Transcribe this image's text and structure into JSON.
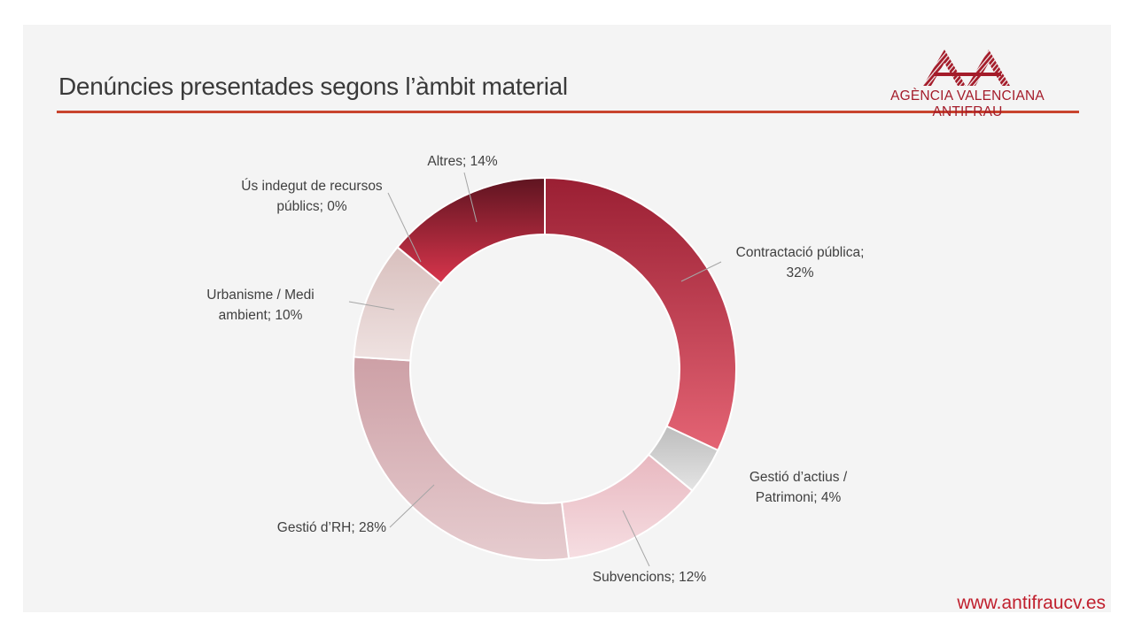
{
  "header": {
    "title": "Denúncies presentades segons l’àmbit material",
    "org_name": "AGÈNCIA VALENCIANA ANTIFRAU"
  },
  "footer": {
    "url": "www.antifraucv.es"
  },
  "colors": {
    "brand": "#a41c2a",
    "rule": "#c8442e",
    "url": "#c0202e"
  },
  "chart_data": {
    "type": "pie",
    "subtype": "doughnut",
    "title": "",
    "slices": [
      {
        "name": "Contractació pública",
        "value": 32,
        "label": [
          "Contractació pública;",
          "32%"
        ],
        "color_top": "#9a1f33",
        "color_bottom": "#e46474"
      },
      {
        "name": "Gestió d’actius / Patrimoni",
        "value": 4,
        "label": [
          "Gestió d’actius /",
          "Patrimoni; 4%"
        ],
        "color_top": "#bdbdbd",
        "color_bottom": "#e4e4e4"
      },
      {
        "name": "Subvencions",
        "value": 12,
        "label": [
          "Subvencions; 12%"
        ],
        "color_top": "#e8b8c0",
        "color_bottom": "#f6dee2"
      },
      {
        "name": "Gestió d’RH",
        "value": 28,
        "label": [
          "Gestió d’RH; 28%"
        ],
        "color_top": "#cda0a6",
        "color_bottom": "#e6cccf"
      },
      {
        "name": "Urbanisme / Medi ambient",
        "value": 10,
        "label": [
          "Urbanisme / Medi",
          "ambient; 10%"
        ],
        "color_top": "#d8bfbd",
        "color_bottom": "#efe2e1"
      },
      {
        "name": "Ús indegut de recursos públics",
        "value": 0,
        "label": [
          "Ús indegut de recursos",
          "públics; 0%"
        ],
        "color_top": "#c8c8c8",
        "color_bottom": "#c8c8c8"
      },
      {
        "name": "Altres",
        "value": 14,
        "label": [
          "Altres; 14%"
        ],
        "color_top": "#5e1420",
        "color_bottom": "#d8354c"
      }
    ],
    "legend": "none",
    "data_labels": "outside with leader lines"
  }
}
